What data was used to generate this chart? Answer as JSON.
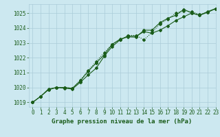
{
  "title": "Graphe pression niveau de la mer (hPa)",
  "bg_color": "#cce8f0",
  "grid_color": "#aaccd8",
  "line_color": "#1a5c1a",
  "xlim": [
    -0.5,
    23
  ],
  "ylim": [
    1018.7,
    1025.6
  ],
  "yticks": [
    1019,
    1020,
    1021,
    1022,
    1023,
    1024,
    1025
  ],
  "xticks": [
    0,
    1,
    2,
    3,
    4,
    5,
    6,
    7,
    8,
    9,
    10,
    11,
    12,
    13,
    14,
    15,
    16,
    17,
    18,
    19,
    20,
    21,
    22,
    23
  ],
  "series1": [
    1019.0,
    1019.4,
    1019.85,
    1020.0,
    1019.95,
    1019.9,
    1020.35,
    1020.85,
    1021.3,
    1022.1,
    1022.75,
    1023.2,
    1023.45,
    1023.45,
    1023.75,
    1023.65,
    1023.85,
    1024.15,
    1024.5,
    1024.75,
    1025.0,
    1024.85,
    1025.05,
    1025.3
  ],
  "series2": [
    1019.0,
    1019.4,
    1019.85,
    1020.0,
    1020.0,
    1019.95,
    1020.5,
    1021.15,
    1021.75,
    1022.35,
    1022.9,
    1023.2,
    1023.5,
    1023.5,
    1023.2,
    1023.7,
    1024.25,
    1024.6,
    1025.0,
    1025.15,
    1025.1,
    1024.9,
    1025.05,
    1025.3
  ],
  "series3": [
    1019.0,
    1019.4,
    1019.9,
    1020.0,
    1020.0,
    1019.95,
    1020.45,
    1021.1,
    1021.65,
    1022.2,
    1022.9,
    1023.25,
    1023.4,
    1023.38,
    1023.85,
    1023.85,
    1024.35,
    1024.65,
    1024.85,
    1025.25,
    1025.0,
    1024.85,
    1025.1,
    1025.3
  ],
  "marker": "D",
  "markersize": 2.0,
  "linewidth": 0.8,
  "title_fontsize": 6.5,
  "tick_fontsize": 5.5
}
